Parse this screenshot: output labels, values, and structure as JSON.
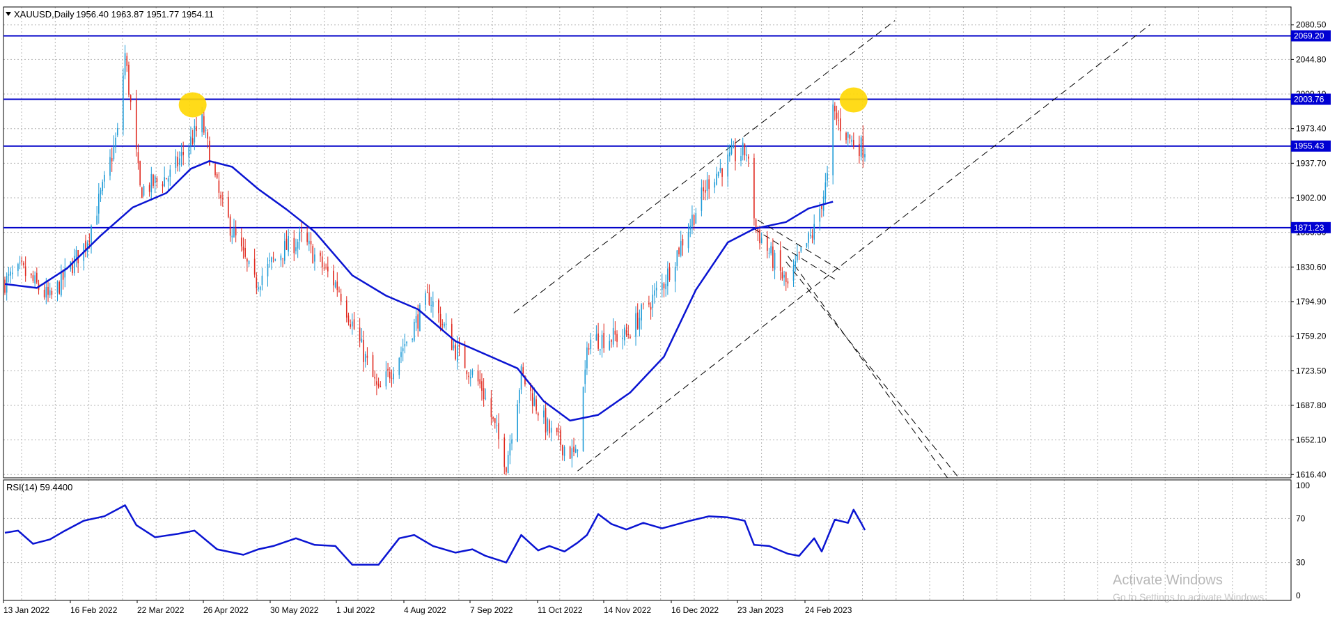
{
  "chart_data": [
    {
      "type": "candlestick",
      "symbol_label": "XAUUSD,Daily",
      "ohlc_label": "1956.40 1963.87 1951.77 1954.11",
      "yticks": [
        "2080.50",
        "2044.80",
        "2009.10",
        "1973.40",
        "1937.70",
        "1902.00",
        "1866.30",
        "1830.60",
        "1794.90",
        "1759.20",
        "1723.50",
        "1687.80",
        "1652.10",
        "1616.40"
      ],
      "xticks": [
        "13 Jan 2022",
        "16 Feb 2022",
        "22 Mar 2022",
        "26 Apr 2022",
        "30 May 2022",
        "1 Jul 2022",
        "4 Aug 2022",
        "7 Sep 2022",
        "11 Oct 2022",
        "14 Nov 2022",
        "16 Dec 2022",
        "23 Jan 2023",
        "24 Feb 2023"
      ],
      "ylim": [
        1613.0,
        2099.0
      ],
      "horizontal_levels": [
        {
          "label": "2069.20",
          "value": 2069.2
        },
        {
          "label": "2003.76",
          "value": 2003.76
        },
        {
          "label": "1955.43",
          "value": 1955.43
        },
        {
          "label": "1871.23",
          "value": 1871.23
        }
      ],
      "ma_series": [
        {
          "date": "2022-01-03",
          "value": 1813
        },
        {
          "date": "2022-01-20",
          "value": 1809
        },
        {
          "date": "2022-02-05",
          "value": 1829
        },
        {
          "date": "2022-02-23",
          "value": 1863
        },
        {
          "date": "2022-03-12",
          "value": 1892
        },
        {
          "date": "2022-03-30",
          "value": 1907
        },
        {
          "date": "2022-04-12",
          "value": 1932
        },
        {
          "date": "2022-04-22",
          "value": 1940
        },
        {
          "date": "2022-05-04",
          "value": 1934
        },
        {
          "date": "2022-05-18",
          "value": 1911
        },
        {
          "date": "2022-06-02",
          "value": 1890
        },
        {
          "date": "2022-06-17",
          "value": 1867
        },
        {
          "date": "2022-07-07",
          "value": 1822
        },
        {
          "date": "2022-07-25",
          "value": 1801
        },
        {
          "date": "2022-08-11",
          "value": 1787
        },
        {
          "date": "2022-08-31",
          "value": 1754
        },
        {
          "date": "2022-09-20",
          "value": 1737
        },
        {
          "date": "2022-10-03",
          "value": 1726
        },
        {
          "date": "2022-10-17",
          "value": 1692
        },
        {
          "date": "2022-10-31",
          "value": 1672
        },
        {
          "date": "2022-11-15",
          "value": 1678
        },
        {
          "date": "2022-12-02",
          "value": 1701
        },
        {
          "date": "2022-12-20",
          "value": 1738
        },
        {
          "date": "2023-01-06",
          "value": 1807
        },
        {
          "date": "2023-01-23",
          "value": 1856
        },
        {
          "date": "2023-02-06",
          "value": 1870
        },
        {
          "date": "2023-02-23",
          "value": 1877
        },
        {
          "date": "2023-03-07",
          "value": 1891
        },
        {
          "date": "2023-03-20",
          "value": 1898
        }
      ],
      "candle_keypoints": [
        {
          "date": "2022-01-03",
          "close": 1815
        },
        {
          "date": "2022-01-12",
          "close": 1827
        },
        {
          "date": "2022-01-27",
          "close": 1797
        },
        {
          "date": "2022-02-15",
          "close": 1855
        },
        {
          "date": "2022-02-24",
          "close": 1910
        },
        {
          "date": "2022-03-04",
          "close": 1968
        },
        {
          "date": "2022-03-08",
          "close": 2050
        },
        {
          "date": "2022-03-16",
          "close": 1910
        },
        {
          "date": "2022-04-01",
          "close": 1925
        },
        {
          "date": "2022-04-18",
          "close": 1980
        },
        {
          "date": "2022-04-28",
          "close": 1896
        },
        {
          "date": "2022-05-16",
          "close": 1813
        },
        {
          "date": "2022-05-31",
          "close": 1848
        },
        {
          "date": "2022-06-10",
          "close": 1860
        },
        {
          "date": "2022-06-30",
          "close": 1808
        },
        {
          "date": "2022-07-21",
          "close": 1700
        },
        {
          "date": "2022-08-17",
          "close": 1800
        },
        {
          "date": "2022-08-31",
          "close": 1745
        },
        {
          "date": "2022-09-14",
          "close": 1706
        },
        {
          "date": "2022-09-27",
          "close": 1628
        },
        {
          "date": "2022-10-05",
          "close": 1720
        },
        {
          "date": "2022-10-20",
          "close": 1660
        },
        {
          "date": "2022-11-03",
          "close": 1634
        },
        {
          "date": "2022-11-10",
          "close": 1755
        },
        {
          "date": "2022-11-30",
          "close": 1760
        },
        {
          "date": "2022-12-20",
          "close": 1815
        },
        {
          "date": "2023-01-13",
          "close": 1920
        },
        {
          "date": "2023-01-26",
          "close": 1945
        },
        {
          "date": "2023-02-02",
          "close": 1950
        },
        {
          "date": "2023-02-07",
          "close": 1870
        },
        {
          "date": "2023-02-24",
          "close": 1810
        },
        {
          "date": "2023-03-02",
          "close": 1840
        },
        {
          "date": "2023-03-10",
          "close": 1868
        },
        {
          "date": "2023-03-17",
          "close": 1921
        },
        {
          "date": "2023-03-20",
          "close": 1990
        },
        {
          "date": "2023-03-23",
          "close": 1980
        },
        {
          "date": "2023-03-30",
          "close": 1960
        },
        {
          "date": "2023-04-05",
          "close": 1954
        }
      ],
      "trendlines": [
        {
          "from": {
            "date": "2022-10-01",
            "value": 1783
          },
          "to": {
            "date": "2023-04-22",
            "value": 2085
          }
        },
        {
          "from": {
            "date": "2022-11-04",
            "value": 1620
          },
          "to": {
            "date": "2023-09-05",
            "value": 2081
          }
        },
        {
          "from": {
            "date": "2023-02-24",
            "value": 1842
          },
          "to": {
            "date": "2023-05-20",
            "value": 1613
          }
        },
        {
          "from": {
            "date": "2023-02-23",
            "value": 1836
          },
          "to": {
            "date": "2023-05-26",
            "value": 1613
          }
        },
        {
          "from": {
            "date": "2023-02-06",
            "value": 1870
          },
          "to": {
            "date": "2023-03-21",
            "value": 1818
          }
        },
        {
          "from": {
            "date": "2023-02-08",
            "value": 1879
          },
          "to": {
            "date": "2023-03-25",
            "value": 1826
          }
        }
      ],
      "highlight_markers": [
        {
          "date": "2022-04-13",
          "value": 1998
        },
        {
          "date": "2023-03-31",
          "value": 2003
        }
      ]
    },
    {
      "type": "line",
      "label": "RSI(14) 59.4400",
      "yticks": [
        "100",
        "70",
        "30",
        "0"
      ],
      "ylim": [
        0,
        100
      ],
      "points": [
        {
          "date": "2022-01-03",
          "value": 57
        },
        {
          "date": "2022-01-10",
          "value": 59
        },
        {
          "date": "2022-01-18",
          "value": 47
        },
        {
          "date": "2022-01-27",
          "value": 51
        },
        {
          "date": "2022-02-03",
          "value": 58
        },
        {
          "date": "2022-02-14",
          "value": 68
        },
        {
          "date": "2022-02-25",
          "value": 72
        },
        {
          "date": "2022-03-08",
          "value": 82
        },
        {
          "date": "2022-03-14",
          "value": 64
        },
        {
          "date": "2022-03-24",
          "value": 53
        },
        {
          "date": "2022-04-05",
          "value": 56
        },
        {
          "date": "2022-04-14",
          "value": 59
        },
        {
          "date": "2022-04-26",
          "value": 42
        },
        {
          "date": "2022-05-10",
          "value": 37
        },
        {
          "date": "2022-05-18",
          "value": 42
        },
        {
          "date": "2022-05-26",
          "value": 45
        },
        {
          "date": "2022-06-07",
          "value": 52
        },
        {
          "date": "2022-06-17",
          "value": 46
        },
        {
          "date": "2022-06-28",
          "value": 45
        },
        {
          "date": "2022-07-07",
          "value": 28
        },
        {
          "date": "2022-07-21",
          "value": 28
        },
        {
          "date": "2022-08-01",
          "value": 52
        },
        {
          "date": "2022-08-09",
          "value": 55
        },
        {
          "date": "2022-08-19",
          "value": 45
        },
        {
          "date": "2022-08-31",
          "value": 39
        },
        {
          "date": "2022-09-09",
          "value": 42
        },
        {
          "date": "2022-09-16",
          "value": 36
        },
        {
          "date": "2022-09-27",
          "value": 30
        },
        {
          "date": "2022-10-05",
          "value": 55
        },
        {
          "date": "2022-10-14",
          "value": 41
        },
        {
          "date": "2022-10-20",
          "value": 45
        },
        {
          "date": "2022-10-28",
          "value": 40
        },
        {
          "date": "2022-11-04",
          "value": 48
        },
        {
          "date": "2022-11-09",
          "value": 55
        },
        {
          "date": "2022-11-15",
          "value": 74
        },
        {
          "date": "2022-11-22",
          "value": 65
        },
        {
          "date": "2022-11-30",
          "value": 60
        },
        {
          "date": "2022-12-09",
          "value": 66
        },
        {
          "date": "2022-12-19",
          "value": 61
        },
        {
          "date": "2023-01-03",
          "value": 68
        },
        {
          "date": "2023-01-13",
          "value": 72
        },
        {
          "date": "2023-01-23",
          "value": 71
        },
        {
          "date": "2023-02-01",
          "value": 68
        },
        {
          "date": "2023-02-06",
          "value": 46
        },
        {
          "date": "2023-02-14",
          "value": 45
        },
        {
          "date": "2023-02-24",
          "value": 38
        },
        {
          "date": "2023-03-02",
          "value": 36
        },
        {
          "date": "2023-03-10",
          "value": 52
        },
        {
          "date": "2023-03-14",
          "value": 40
        },
        {
          "date": "2023-03-21",
          "value": 69
        },
        {
          "date": "2023-03-28",
          "value": 66
        },
        {
          "date": "2023-03-31",
          "value": 78
        },
        {
          "date": "2023-04-04",
          "value": 66
        },
        {
          "date": "2023-04-06",
          "value": 59.44
        }
      ]
    }
  ],
  "watermark": {
    "title": "Activate Windows",
    "subtitle": "Go to Settings to activate Windows."
  },
  "colors": {
    "bull": "#1e9bd7",
    "bear": "#e0281e",
    "ma": "#0a14d2",
    "hline": "#0000c8",
    "rsi": "#0a14d2",
    "highlight": "#ffd700"
  }
}
